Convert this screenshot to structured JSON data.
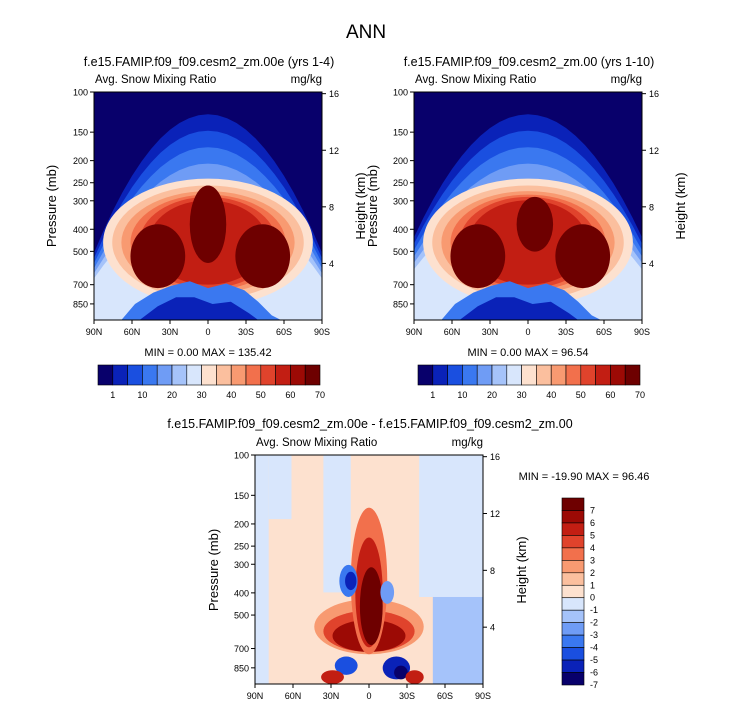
{
  "title": "ANN",
  "panel_labels": {
    "left": "Avg. Snow Mixing Ratio",
    "right": "mg/kg"
  },
  "colormap": {
    "abs": [
      "#08006b",
      "#0a22b8",
      "#1a4fe0",
      "#3a78f0",
      "#6f9cf5",
      "#a5c3fa",
      "#d8e6fc",
      "#fde1cf",
      "#fbbf9e",
      "#f89a71",
      "#f2704c",
      "#e0432c",
      "#c21e13",
      "#9c0a05",
      "#6e0000"
    ],
    "diff": [
      "#08006b",
      "#0a22b8",
      "#1a4fe0",
      "#3a78f0",
      "#6f9cf5",
      "#a5c3fa",
      "#d8e6fc",
      "#fde1cf",
      "#fbbf9e",
      "#f89a71",
      "#f2704c",
      "#e0432c",
      "#c21e13",
      "#9c0a05",
      "#6e0000"
    ]
  },
  "labelbar_abs": [
    "1",
    "10",
    "20",
    "30",
    "40",
    "50",
    "60",
    "70"
  ],
  "labelbar_diff": [
    "7",
    "6",
    "5",
    "4",
    "3",
    "2",
    "1",
    "0",
    "-1",
    "-2",
    "-3",
    "-4",
    "-5",
    "-6",
    "-7"
  ],
  "chart_data": [
    {
      "type": "heatmap",
      "title": "f.e15.FAMIP.f09_f09.cesm2_zm.00e (yrs 1-4)",
      "xlabel": "",
      "ylabel": "Pressure (mb)",
      "y2label": "Height (km)",
      "x_ticks": [
        "90N",
        "60N",
        "30N",
        "0",
        "30S",
        "60S",
        "90S"
      ],
      "y_ticks": [
        "100",
        "150",
        "200",
        "250",
        "300",
        "400",
        "500",
        "700",
        "850"
      ],
      "y2_ticks": [
        "16",
        "12",
        "8",
        "4"
      ],
      "ylim": [
        100,
        1000
      ],
      "log_y": true,
      "stats": "MIN =  0.00   MAX = 135.42",
      "min": 0.0,
      "max": 135.42
    },
    {
      "type": "heatmap",
      "title": "f.e15.FAMIP.f09_f09.cesm2_zm.00 (yrs 1-10)",
      "xlabel": "",
      "ylabel": "Pressure (mb)",
      "y2label": "Height (km)",
      "x_ticks": [
        "90N",
        "60N",
        "30N",
        "0",
        "30S",
        "60S",
        "90S"
      ],
      "y_ticks": [
        "100",
        "150",
        "200",
        "250",
        "300",
        "400",
        "500",
        "700",
        "850"
      ],
      "y2_ticks": [
        "16",
        "12",
        "8",
        "4"
      ],
      "ylim": [
        100,
        1000
      ],
      "log_y": true,
      "stats": "MIN =  0.00   MAX = 96.54",
      "min": 0.0,
      "max": 96.54
    },
    {
      "type": "heatmap",
      "title": "f.e15.FAMIP.f09_f09.cesm2_zm.00e - f.e15.FAMIP.f09_f09.cesm2_zm.00",
      "xlabel": "",
      "ylabel": "Pressure (mb)",
      "y2label": "Height (km)",
      "x_ticks": [
        "90N",
        "60N",
        "30N",
        "0",
        "30S",
        "60S",
        "90S"
      ],
      "y_ticks": [
        "100",
        "150",
        "200",
        "250",
        "300",
        "400",
        "500",
        "700",
        "850"
      ],
      "y2_ticks": [
        "16",
        "12",
        "8",
        "4"
      ],
      "ylim": [
        100,
        1000
      ],
      "log_y": true,
      "stats": "MIN = -19.90   MAX =  96.46",
      "min": -19.9,
      "max": 96.46
    }
  ]
}
